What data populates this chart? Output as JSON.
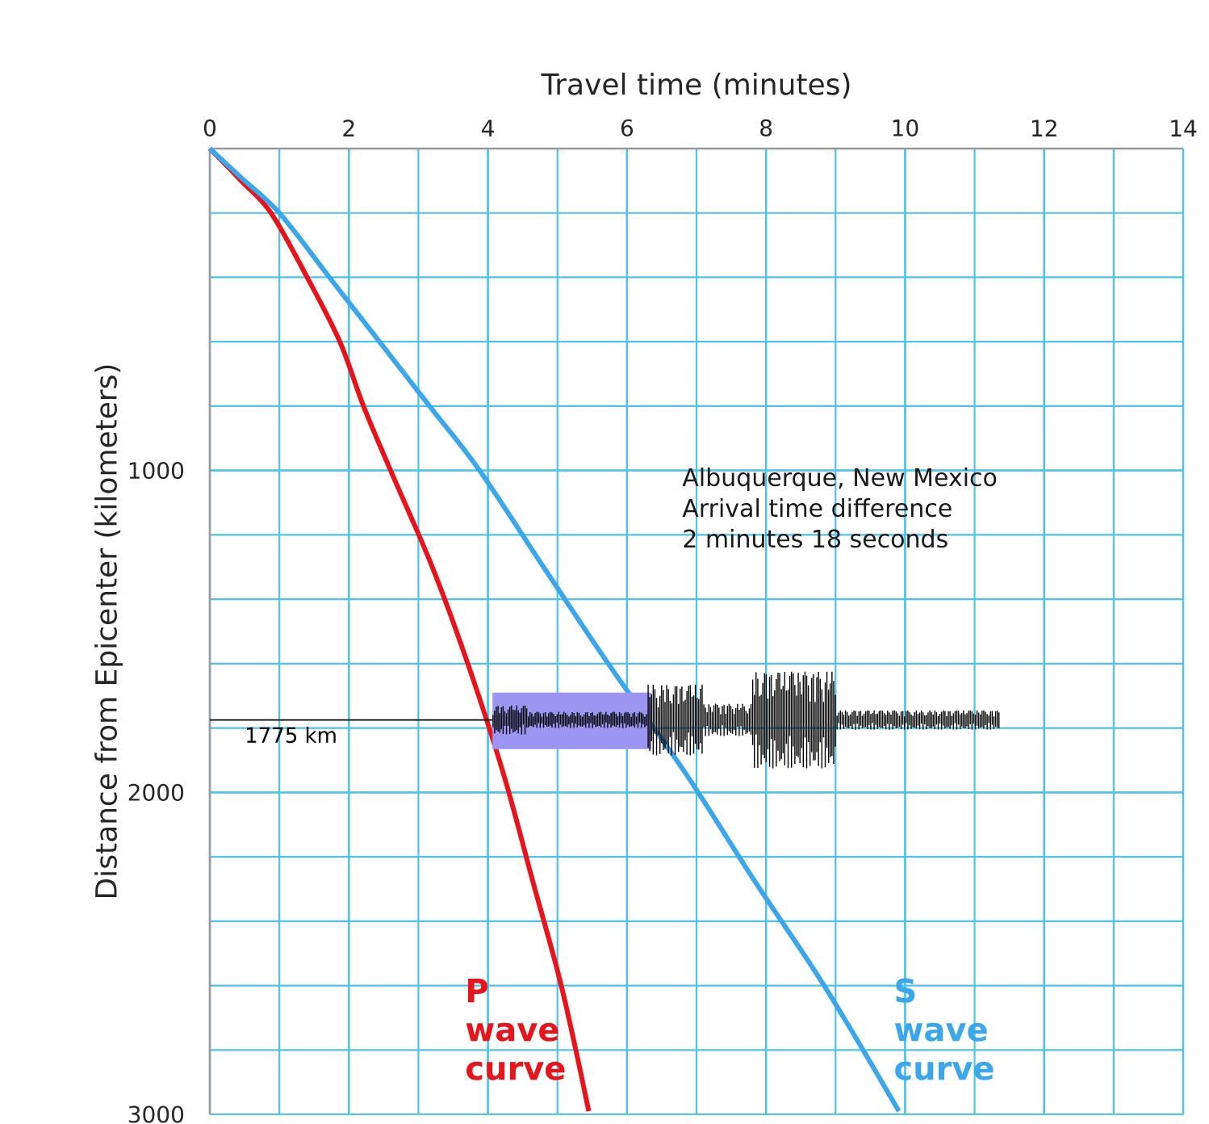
{
  "chart_data": {
    "type": "line",
    "xlabel": "Travel time (minutes)",
    "ylabel": "Distance from Epicenter (kilometers)",
    "xlim": [
      0,
      14
    ],
    "xticks": [
      0,
      2,
      4,
      6,
      8,
      10,
      12,
      14
    ],
    "ylim": [
      3000,
      0
    ],
    "yticks": [
      1000,
      2000,
      3000
    ],
    "grid": true,
    "legend": false,
    "marker": "none",
    "line_style": "solid",
    "series": [
      {
        "name": "P wave curve",
        "color": "#e8141c",
        "x": [
          0,
          0.45,
          0.88,
          1.4,
          1.87,
          2.21,
          2.6,
          3.2,
          3.71,
          4.22,
          4.65,
          5.06,
          5.45
        ],
        "values": [
          0,
          100,
          200,
          400,
          600,
          800,
          1000,
          1300,
          1600,
          1940,
          2280,
          2605,
          2990
        ]
      },
      {
        "name": "S wave curve",
        "color": "#3aa6ec",
        "x": [
          0,
          0.45,
          1.0,
          1.72,
          2.44,
          3.16,
          3.88,
          4.8,
          5.73,
          6.84,
          7.85,
          8.85,
          9.91
        ],
        "values": [
          0,
          90,
          200,
          400,
          600,
          800,
          1000,
          1300,
          1600,
          1940,
          2280,
          2605,
          2990
        ]
      }
    ],
    "ref_lines": [
      {
        "axis": "y",
        "value": 1775,
        "label": "1775 km",
        "color": "#000000"
      }
    ],
    "annotations": [
      "Albuquerque, New Mexico",
      "Arrival time difference",
      "2 minutes 18 seconds"
    ]
  }
}
